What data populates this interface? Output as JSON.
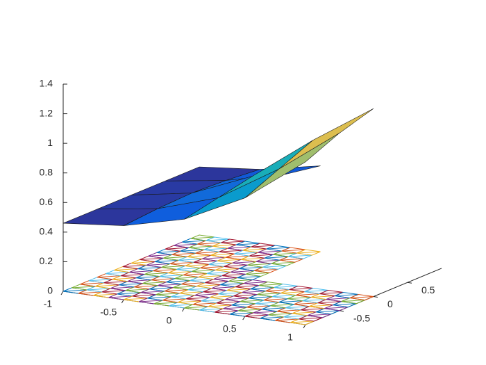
{
  "chart_data": {
    "type": "surface",
    "x": [
      -1,
      -0.5,
      0,
      0.5,
      1
    ],
    "y": [
      -1,
      -0.5,
      0,
      0.5,
      1
    ],
    "z": [
      [
        0.46,
        0.5,
        0.6,
        0.8,
        1.1
      ],
      [
        0.46,
        0.52,
        0.65,
        0.9,
        1.2
      ],
      [
        0.46,
        0.53,
        0.7,
        1.0,
        1.27
      ],
      [
        0.46,
        0.52,
        0.62,
        null,
        null
      ],
      [
        0.46,
        0.5,
        0.58,
        null,
        null
      ]
    ],
    "xlim": [
      -1,
      1
    ],
    "ylim": [
      -1,
      1
    ],
    "zlim": [
      0,
      1.4
    ],
    "xticks": [
      -1,
      -0.5,
      0,
      0.5,
      1
    ],
    "yticks": [
      -0.5,
      0,
      0.5
    ],
    "zticks": [
      0,
      0.2,
      0.4,
      0.6,
      0.8,
      1,
      1.2,
      1.4
    ]
  }
}
